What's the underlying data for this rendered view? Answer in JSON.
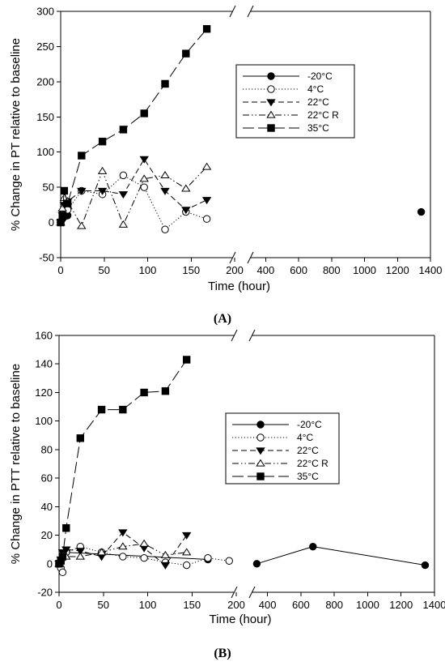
{
  "chart_data": [
    {
      "type": "line",
      "panel_label": "(A)",
      "xlabel": "Time (hour)",
      "ylabel": "% Change in PT relative to baseline",
      "ylim": [
        -50,
        300
      ],
      "yticks": [
        -50,
        0,
        50,
        100,
        150,
        200,
        250,
        300
      ],
      "x_segments": [
        {
          "range": [
            0,
            200
          ],
          "ticks": [
            0,
            50,
            100,
            150,
            200
          ]
        },
        {
          "range": [
            300,
            1400
          ],
          "ticks": [
            400,
            600,
            800,
            1000,
            1200,
            1400
          ]
        }
      ],
      "axis_break": true,
      "grid": false,
      "legend_position": "top-right",
      "series": [
        {
          "name": "-20°C",
          "marker": "circle-filled",
          "dash": "solid",
          "x": [
            0,
            2,
            4,
            8,
            1344
          ],
          "y": [
            0,
            5,
            8,
            10,
            15
          ]
        },
        {
          "name": "4°C",
          "marker": "circle-open",
          "dash": "dotted",
          "x": [
            0,
            2,
            4,
            8,
            24,
            48,
            72,
            96,
            120,
            144,
            168
          ],
          "y": [
            0,
            12,
            15,
            18,
            45,
            40,
            67,
            50,
            -10,
            15,
            5
          ]
        },
        {
          "name": "22°C",
          "marker": "triangle-down-filled",
          "dash": "dashed",
          "x": [
            0,
            2,
            4,
            8,
            24,
            48,
            72,
            96,
            120,
            144,
            168
          ],
          "y": [
            0,
            10,
            25,
            30,
            45,
            45,
            40,
            90,
            45,
            18,
            32
          ]
        },
        {
          "name": "22°C R",
          "marker": "triangle-up-open",
          "dash": "dashdotdot",
          "x": [
            0,
            2,
            4,
            8,
            24,
            48,
            72,
            96,
            120,
            144,
            168
          ],
          "y": [
            0,
            20,
            35,
            30,
            -5,
            73,
            -3,
            62,
            67,
            48,
            79
          ]
        },
        {
          "name": "35°C",
          "marker": "square-filled",
          "dash": "longdash",
          "x": [
            0,
            2,
            4,
            8,
            24,
            48,
            72,
            96,
            120,
            144,
            168
          ],
          "y": [
            0,
            10,
            45,
            27,
            95,
            115,
            132,
            155,
            197,
            240,
            275
          ]
        }
      ]
    },
    {
      "type": "line",
      "panel_label": "(B)",
      "xlabel": "Time (hour)",
      "ylabel": "% Change in PTT relative to baseline",
      "ylim": [
        -20,
        160
      ],
      "yticks": [
        -20,
        0,
        20,
        40,
        60,
        80,
        100,
        120,
        140,
        160
      ],
      "x_segments": [
        {
          "range": [
            0,
            200
          ],
          "ticks": [
            0,
            50,
            100,
            150,
            200
          ]
        },
        {
          "range": [
            300,
            1400
          ],
          "ticks": [
            400,
            600,
            800,
            1000,
            1200,
            1400
          ]
        }
      ],
      "axis_break": true,
      "grid": false,
      "legend_position": "center-right",
      "series": [
        {
          "name": "-20°C",
          "marker": "circle-filled",
          "dash": "solid",
          "x": [
            0,
            2,
            4,
            8,
            168,
            336,
            672,
            1344
          ],
          "y": [
            0,
            2,
            5,
            8,
            3,
            0,
            12,
            -1
          ]
        },
        {
          "name": "4°C",
          "marker": "circle-open",
          "dash": "dotted",
          "x": [
            0,
            2,
            4,
            8,
            24,
            48,
            72,
            96,
            120,
            144,
            168,
            192
          ],
          "y": [
            0,
            -3,
            -6,
            8,
            12,
            8,
            5,
            4,
            1,
            -1,
            4,
            2
          ]
        },
        {
          "name": "22°C",
          "marker": "triangle-down-filled",
          "dash": "dashed",
          "x": [
            0,
            2,
            4,
            8,
            24,
            48,
            72,
            96,
            120,
            144
          ],
          "y": [
            0,
            3,
            8,
            10,
            9,
            5,
            22,
            11,
            -1,
            20
          ]
        },
        {
          "name": "22°C R",
          "marker": "triangle-up-open",
          "dash": "dashdotdot",
          "x": [
            0,
            2,
            4,
            8,
            24,
            48,
            72,
            96,
            120,
            144
          ],
          "y": [
            0,
            4,
            6,
            5,
            5,
            8,
            12,
            14,
            6,
            8
          ]
        },
        {
          "name": "35°C",
          "marker": "square-filled",
          "dash": "longdash",
          "x": [
            0,
            2,
            4,
            8,
            24,
            48,
            72,
            96,
            120,
            144
          ],
          "y": [
            0,
            2,
            5,
            25,
            88,
            108,
            108,
            120,
            121,
            143
          ]
        }
      ]
    }
  ]
}
